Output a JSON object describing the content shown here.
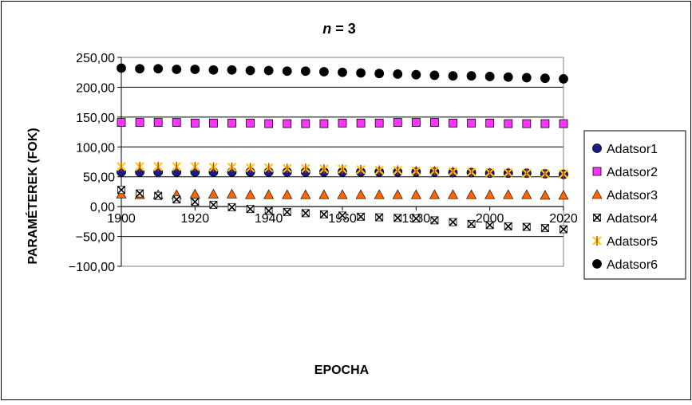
{
  "chart_data": {
    "type": "scatter",
    "title_prefix": "n",
    "title_suffix": " = 3",
    "xlabel": "EPOCHA",
    "ylabel": "PARAMÉTEREK (FOK)",
    "xlim": [
      1900,
      2020
    ],
    "ylim": [
      -100,
      250
    ],
    "x_ticks": [
      1900,
      1920,
      1940,
      1960,
      1980,
      2000,
      2020
    ],
    "y_ticks": [
      -100,
      -50,
      0,
      50,
      100,
      150,
      200,
      250
    ],
    "x_tick_labels": [
      "1900",
      "1920",
      "1940",
      "1960",
      "1980",
      "2000",
      "2020"
    ],
    "y_tick_labels": [
      "−100,00",
      "−50,00",
      "0,00",
      "50,00",
      "100,00",
      "150,00",
      "200,00",
      "250,00"
    ],
    "grid": "horizontal major",
    "legend_position": "right",
    "x": [
      1900,
      1905,
      1910,
      1915,
      1920,
      1925,
      1930,
      1935,
      1940,
      1945,
      1950,
      1955,
      1960,
      1965,
      1970,
      1975,
      1980,
      1985,
      1990,
      1995,
      2000,
      2005,
      2010,
      2015,
      2020
    ],
    "series": [
      {
        "name": "Adatsor1",
        "marker": "circle",
        "color": "#1a1a8c",
        "values": [
          58,
          58,
          58,
          58,
          58,
          58,
          58,
          58,
          58,
          58,
          58,
          58,
          58,
          58,
          58,
          58,
          58,
          58,
          57,
          57,
          56,
          56,
          56,
          55,
          54
        ]
      },
      {
        "name": "Adatsor2",
        "marker": "square",
        "color": "#ff33ff",
        "values": [
          141,
          141,
          141,
          141,
          140,
          140,
          140,
          140,
          139,
          139,
          139,
          139,
          140,
          140,
          140,
          141,
          141,
          141,
          140,
          140,
          140,
          139,
          139,
          139,
          139
        ]
      },
      {
        "name": "Adatsor3",
        "marker": "triangle",
        "color": "#ff6600",
        "values": [
          21,
          20,
          20,
          20,
          21,
          21,
          21,
          20,
          20,
          20,
          20,
          20,
          20,
          20,
          20,
          20,
          20,
          20,
          20,
          20,
          20,
          20,
          20,
          19,
          19
        ]
      },
      {
        "name": "Adatsor4",
        "marker": "xbox",
        "color": "#333333",
        "values": [
          28,
          22,
          18,
          12,
          8,
          3,
          -1,
          -4,
          -7,
          -9,
          -11,
          -13,
          -15,
          -17,
          -18,
          -19,
          -20,
          -23,
          -26,
          -29,
          -31,
          -33,
          -34,
          -36,
          -38
        ]
      },
      {
        "name": "Adatsor5",
        "marker": "star",
        "color": "#ffcc00",
        "values": [
          67,
          67,
          67,
          67,
          67,
          66,
          66,
          65,
          65,
          64,
          64,
          63,
          63,
          62,
          61,
          61,
          60,
          60,
          59,
          58,
          57,
          57,
          56,
          55,
          55
        ]
      },
      {
        "name": "Adatsor6",
        "marker": "circle",
        "color": "#000000",
        "values": [
          232,
          231,
          231,
          230,
          230,
          229,
          229,
          228,
          228,
          227,
          227,
          226,
          225,
          224,
          223,
          222,
          221,
          220,
          219,
          219,
          218,
          217,
          216,
          215,
          214
        ]
      }
    ]
  }
}
